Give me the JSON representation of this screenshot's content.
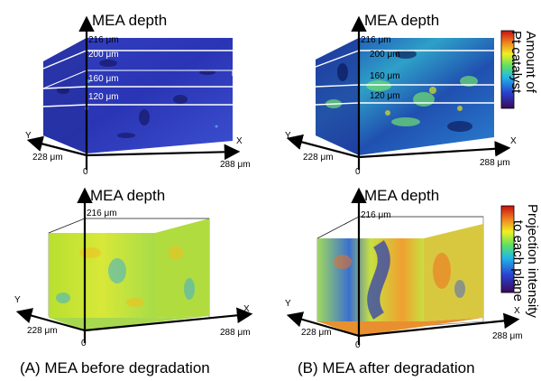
{
  "panels": {
    "a_top": {
      "axis_title": "MEA depth",
      "z_max": "216 μm",
      "x_end": "288 μm",
      "y_end": "228 μm",
      "origin": "0",
      "x_axis": "X",
      "y_axis": "Y",
      "levels": [
        "200 μm",
        "160 μm",
        "120 μm"
      ]
    },
    "b_top": {
      "axis_title": "MEA depth",
      "z_max": "216 μm",
      "x_end": "288 μm",
      "y_end": "228 μm",
      "origin": "0",
      "x_axis": "X",
      "y_axis": "Y",
      "levels": [
        "200 μm",
        "160 μm",
        "120 μm"
      ]
    },
    "a_bot": {
      "axis_title": "MEA depth",
      "z_max": "216 μm",
      "x_end": "288 μm",
      "y_end": "228 μm",
      "origin": "0",
      "x_axis": "X",
      "y_axis": "Y"
    },
    "b_bot": {
      "axis_title": "MEA depth",
      "z_max": "216 μm",
      "x_end": "288 μm",
      "y_end": "228 μm",
      "origin": "0",
      "x_axis": "X",
      "y_axis": "Y"
    }
  },
  "colorbars": {
    "top": {
      "title_line1": "Amount of",
      "title_line2": "Pt catalyst"
    },
    "bottom": {
      "title_line1": "Projection intensity",
      "title_line2": "to each plane"
    }
  },
  "captions": {
    "a": "(A) MEA before degradation",
    "b": "(B) MEA after degradation"
  },
  "colors": {
    "low": "#1a1a8c",
    "mid": "#2f7dd8",
    "high": "#c8e000",
    "peak": "#d83018"
  }
}
